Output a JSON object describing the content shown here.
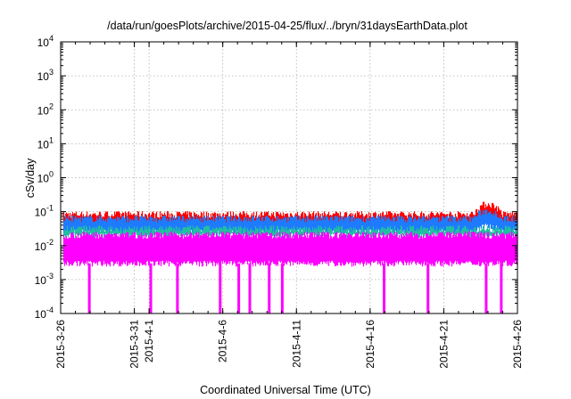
{
  "chart_data": {
    "type": "line",
    "title": "/data/run/goesPlots/archive/2015-04-25/flux/../bryn/31daysEarthData.plot",
    "xlabel": "Coordinated Universal Time (UTC)",
    "ylabel": "cSv/day",
    "yscale": "log",
    "ylim": [
      0.0001,
      10000
    ],
    "xlim": [
      "2015-3-26",
      "2015-4-26"
    ],
    "grid": true,
    "x_ticks": [
      "2015-3-26",
      "2015-3-31",
      "2015-4-1",
      "2015-4-6",
      "2015-4-11",
      "2015-4-16",
      "2015-4-21",
      "2015-4-26"
    ],
    "y_ticks": [
      {
        "value": 0.0001,
        "base": "10",
        "exp": "-4"
      },
      {
        "value": 0.001,
        "base": "10",
        "exp": "-3"
      },
      {
        "value": 0.01,
        "base": "10",
        "exp": "-2"
      },
      {
        "value": 0.1,
        "base": "10",
        "exp": "-1"
      },
      {
        "value": 1,
        "base": "10",
        "exp": "0"
      },
      {
        "value": 10,
        "base": "10",
        "exp": "1"
      },
      {
        "value": 100,
        "base": "10",
        "exp": "2"
      },
      {
        "value": 1000,
        "base": "10",
        "exp": "3"
      },
      {
        "value": 10000,
        "base": "10",
        "exp": "4"
      }
    ],
    "series": [
      {
        "color": "#ff0000",
        "typical_low": 0.04,
        "typical_high": 0.08,
        "peak": 0.16
      },
      {
        "color": "#1e7bff",
        "typical_low": 0.025,
        "typical_high": 0.06,
        "peak": 0.1
      },
      {
        "color": "#20c0a0",
        "typical_low": 0.02,
        "typical_high": 0.03
      },
      {
        "color": "#ff00ff",
        "typical_low": 0.003,
        "typical_high": 0.02,
        "dropouts_to_below": 0.0001,
        "dropout_dates": [
          "2015-3-28",
          "2015-4-1",
          "2015-4-3",
          "2015-4-6",
          "2015-4-7",
          "2015-4-8",
          "2015-4-9",
          "2015-4-10",
          "2015-4-17",
          "2015-4-20",
          "2015-4-24",
          "2015-4-25"
        ]
      }
    ]
  }
}
